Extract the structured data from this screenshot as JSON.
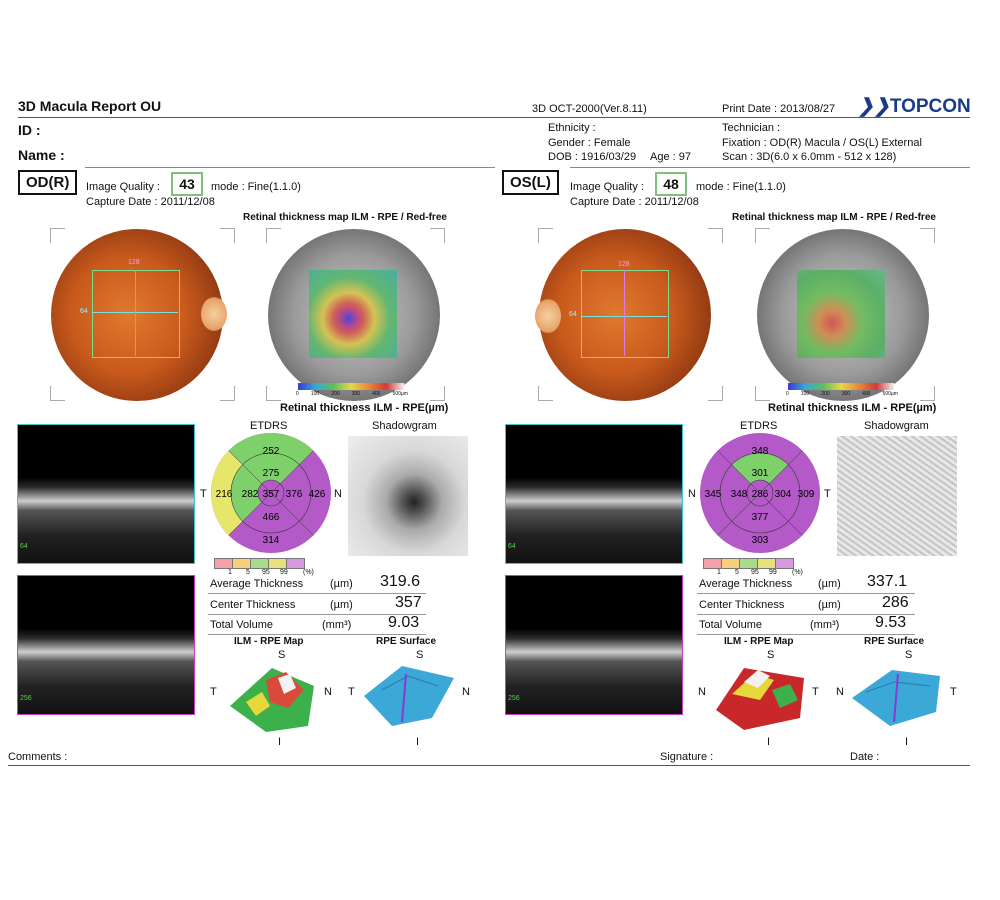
{
  "header": {
    "title": "3D Macula Report OU",
    "device": "3D OCT-2000(Ver.8.11)",
    "print_date": "Print Date : 2013/08/27",
    "brand": "TOPCON",
    "id_label": "ID :",
    "name_label": "Name :",
    "ethnicity": "Ethnicity :",
    "gender": "Gender : Female",
    "dob": "DOB : 1916/03/29",
    "age": "Age : 97",
    "technician": "Technician :",
    "fixation": "Fixation : OD(R) Macula / OS(L) External",
    "scan": "Scan : 3D(6.0 x 6.0mm - 512 x 128)"
  },
  "od": {
    "eye": "OD(R)",
    "image_quality_label": "Image Quality :",
    "image_quality": "43",
    "mode": "mode : Fine(1.1.0)",
    "capture_date": "Capture Date : 2011/12/08",
    "map_title": "Retinal thickness map ILM - RPE / Red-free",
    "thickness_title": "Retinal thickness ILM - RPE(µm)",
    "fundus_marks": [
      "128",
      "64"
    ],
    "oct_marks": [
      "64",
      "256"
    ],
    "etdrs_title": "ETDRS",
    "shadowgram_title": "Shadowgram",
    "etdrs_side_left": "T",
    "etdrs_side_right": "N",
    "etdrs": {
      "outer_sup": "252",
      "inner_sup": "275",
      "outer_temp": "216",
      "inner_temp": "282",
      "center": "357",
      "inner_nasal": "376",
      "outer_nasal": "426",
      "inner_inf": "466",
      "outer_inf": "314"
    },
    "avg_thickness": "319.6",
    "center_thickness": "357",
    "total_volume": "9.03",
    "ilm_map_title": "ILM - RPE Map",
    "rpe_surface_title": "RPE Surface",
    "orient_s": "S",
    "orient_i": "I",
    "ilm_left": "T",
    "ilm_right": "N",
    "rpe_left": "T",
    "rpe_right": "N"
  },
  "os": {
    "eye": "OS(L)",
    "image_quality_label": "Image Quality :",
    "image_quality": "48",
    "mode": "mode : Fine(1.1.0)",
    "capture_date": "Capture Date : 2011/12/08",
    "map_title": "Retinal thickness map ILM - RPE / Red-free",
    "thickness_title": "Retinal thickness ILM - RPE(µm)",
    "fundus_marks": [
      "128",
      "64"
    ],
    "oct_marks": [
      "64",
      "256"
    ],
    "etdrs_title": "ETDRS",
    "shadowgram_title": "Shadowgram",
    "etdrs_side_left": "N",
    "etdrs_side_right": "T",
    "etdrs": {
      "outer_sup": "348",
      "inner_sup": "301",
      "outer_temp": "345",
      "inner_temp": "348",
      "center": "286",
      "inner_nasal": "304",
      "outer_nasal": "309",
      "inner_inf": "377",
      "outer_inf": "303"
    },
    "avg_thickness": "337.1",
    "center_thickness": "286",
    "total_volume": "9.53",
    "ilm_map_title": "ILM - RPE Map",
    "rpe_surface_title": "RPE Surface",
    "orient_s": "S",
    "orient_i": "I",
    "ilm_left": "N",
    "ilm_right": "T",
    "rpe_left": "N",
    "rpe_right": "T"
  },
  "labels": {
    "avg_thickness": "Average Thickness",
    "center_thickness": "Center Thickness",
    "total_volume": "Total Volume",
    "unit_um": "(µm)",
    "unit_mm3": "(mm³)",
    "percent": "(%)",
    "legend_ticks": [
      "1",
      "5",
      "95",
      "99"
    ],
    "colorbar_ticks": [
      "0",
      "100",
      "200",
      "300",
      "400",
      "500µm"
    ]
  },
  "footer": {
    "comments": "Comments :",
    "signature": "Signature :",
    "date": "Date :"
  },
  "colors": {
    "legend": [
      "#f4a0a8",
      "#f6d07a",
      "#a8dc8a",
      "#e7e07c",
      "#d89ade",
      "#c070cc"
    ],
    "sector_green": "#7ed06a",
    "sector_yellow": "#e6e66a",
    "sector_purple": "#b45ac8"
  }
}
